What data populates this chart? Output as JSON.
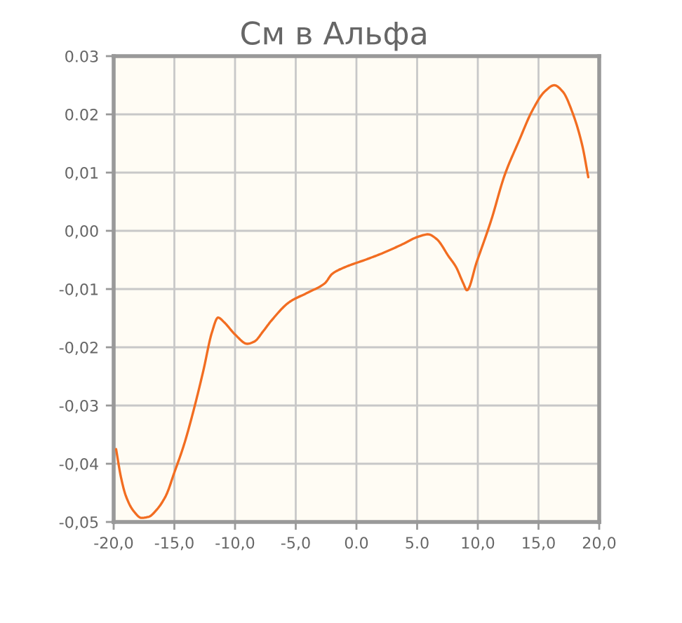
{
  "chart_data": {
    "type": "line",
    "title": "См в Альфа",
    "x": [
      -19.8,
      -19.4,
      -19.0,
      -18.4,
      -17.7,
      -17.1,
      -16.5,
      -15.7,
      -15.0,
      -14.2,
      -13.4,
      -12.6,
      -11.9,
      -11.4,
      -10.9,
      -10.0,
      -9.0,
      -8.4,
      -7.7,
      -7.0,
      -5.5,
      -4.0,
      -2.6,
      -2.0,
      -0.9,
      0.7,
      2.2,
      3.8,
      5.1,
      5.9,
      6.6,
      7.6,
      8.2,
      8.8,
      9.1,
      9.9,
      11.1,
      12.2,
      13.4,
      14.5,
      15.5,
      16.3,
      17.0,
      17.8,
      18.6,
      19.1
    ],
    "series": [
      {
        "color": "#f26d21",
        "values": [
          -0.0375,
          -0.0423,
          -0.0455,
          -0.048,
          -0.0493,
          -0.0491,
          -0.048,
          -0.0455,
          -0.0415,
          -0.0367,
          -0.0307,
          -0.0239,
          -0.0174,
          -0.0149,
          -0.0157,
          -0.0178,
          -0.0194,
          -0.019,
          -0.0173,
          -0.0154,
          -0.0122,
          -0.0106,
          -0.009,
          -0.0074,
          -0.0062,
          -0.005,
          -0.0038,
          -0.0023,
          -0.001,
          -0.0006,
          -0.0014,
          -0.0044,
          -0.0062,
          -0.009,
          -0.0102,
          -0.0054,
          0.0018,
          0.0095,
          0.0155,
          0.0207,
          0.0239,
          0.025,
          0.0239,
          0.0203,
          0.0147,
          0.0092
        ]
      }
    ],
    "xlim": [
      -20,
      20
    ],
    "ylim": [
      -0.05,
      0.03
    ],
    "xticks": [
      {
        "value": -20,
        "label": "-20,0"
      },
      {
        "value": -15,
        "label": "-15,0"
      },
      {
        "value": -10,
        "label": "-10,0"
      },
      {
        "value": -5,
        "label": "-5,0"
      },
      {
        "value": 0,
        "label": "0.0"
      },
      {
        "value": 5,
        "label": "5.0"
      },
      {
        "value": 10,
        "label": "10,0"
      },
      {
        "value": 15,
        "label": "15,0"
      },
      {
        "value": 20,
        "label": "20,0"
      }
    ],
    "yticks": [
      {
        "value": -0.05,
        "label": "-0,05"
      },
      {
        "value": -0.04,
        "label": "-0,04"
      },
      {
        "value": -0.03,
        "label": "-0,03"
      },
      {
        "value": -0.02,
        "label": "-0,02"
      },
      {
        "value": -0.01,
        "label": "-0,01"
      },
      {
        "value": 0,
        "label": "0,00"
      },
      {
        "value": 0.01,
        "label": "0,01"
      },
      {
        "value": 0.02,
        "label": "0.02"
      },
      {
        "value": 0.03,
        "label": "0.03"
      }
    ],
    "grid": true,
    "marker": "none",
    "line_style": "solid"
  }
}
